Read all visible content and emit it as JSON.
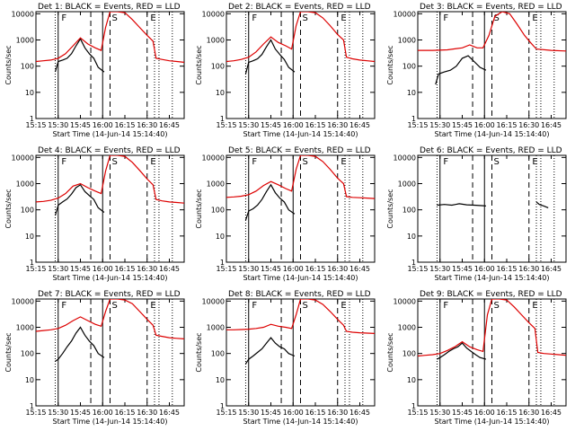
{
  "figure": {
    "xtick_labels": [
      "15:15",
      "15:30",
      "15:45",
      "16:00",
      "16:15",
      "16:30",
      "16:45"
    ],
    "ytick_labels": [
      "1",
      "10",
      "100",
      "1000",
      "10000"
    ],
    "ylabel": "Counts/sec",
    "xlabel": "Start Time (14-Jun-14 15:14:40)",
    "event_labels": [
      "F",
      "S",
      "E"
    ],
    "colors": {
      "events": "#000000",
      "lld": "#dd0000"
    }
  },
  "chart_data": [
    {
      "type": "line",
      "title": "Det 1: BLACK = Events, RED = LLD",
      "xlabel": "",
      "ylabel": "Counts/sec",
      "xlim": [
        "15:15",
        "16:55"
      ],
      "ylim": [
        1,
        12000
      ],
      "yscale": "log",
      "series": [
        {
          "name": "BLACK",
          "x": [
            "15:28",
            "15:30",
            "15:33",
            "15:36",
            "15:39",
            "15:42",
            "15:45",
            "15:48",
            "15:51",
            "15:54",
            "15:57",
            "16:01"
          ],
          "y": [
            60,
            150,
            170,
            200,
            300,
            600,
            1100,
            500,
            300,
            200,
            90,
            60
          ]
        },
        {
          "name": "RED",
          "x": [
            "15:15",
            "15:20",
            "15:25",
            "15:30",
            "15:35",
            "15:40",
            "15:45",
            "15:50",
            "15:55",
            "15:59",
            "16:02",
            "16:05",
            "16:10",
            "16:15",
            "16:20",
            "16:25",
            "16:30",
            "16:34",
            "16:36",
            "16:40",
            "16:45",
            "16:50",
            "16:55"
          ],
          "y": [
            150,
            160,
            170,
            200,
            300,
            600,
            1200,
            700,
            500,
            400,
            3000,
            12000,
            12000,
            11000,
            6000,
            3000,
            1500,
            900,
            200,
            180,
            160,
            150,
            140
          ]
        }
      ]
    },
    {
      "type": "line",
      "title": "Det 2: BLACK = Events, RED = LLD",
      "xlabel": "",
      "ylabel": "Counts/sec",
      "xlim": [
        "15:15",
        "16:55"
      ],
      "ylim": [
        1,
        12000
      ],
      "yscale": "log",
      "series": [
        {
          "name": "BLACK",
          "x": [
            "15:28",
            "15:30",
            "15:33",
            "15:36",
            "15:39",
            "15:42",
            "15:45",
            "15:48",
            "15:51",
            "15:54",
            "15:57",
            "16:01"
          ],
          "y": [
            50,
            140,
            160,
            190,
            280,
            550,
            1000,
            450,
            280,
            180,
            90,
            60
          ]
        },
        {
          "name": "RED",
          "x": [
            "15:15",
            "15:20",
            "15:25",
            "15:30",
            "15:35",
            "15:40",
            "15:45",
            "15:50",
            "15:55",
            "15:59",
            "16:02",
            "16:05",
            "16:10",
            "16:15",
            "16:20",
            "16:25",
            "16:30",
            "16:34",
            "16:36",
            "16:40",
            "16:45",
            "16:50",
            "16:55"
          ],
          "y": [
            150,
            160,
            180,
            220,
            350,
            700,
            1300,
            800,
            600,
            450,
            3500,
            12000,
            12000,
            11000,
            7000,
            3500,
            1600,
            1000,
            220,
            190,
            170,
            160,
            150
          ]
        }
      ]
    },
    {
      "type": "line",
      "title": "Det 3: BLACK = Events, RED = LLD",
      "xlabel": "",
      "ylabel": "Counts/sec",
      "xlim": [
        "15:15",
        "16:55"
      ],
      "ylim": [
        1,
        12000
      ],
      "yscale": "log",
      "series": [
        {
          "name": "BLACK",
          "x": [
            "15:27",
            "15:29",
            "15:33",
            "15:37",
            "15:41",
            "15:45",
            "15:49",
            "15:53",
            "15:57",
            "16:01"
          ],
          "y": [
            20,
            50,
            60,
            70,
            100,
            200,
            250,
            150,
            90,
            70
          ]
        },
        {
          "name": "RED",
          "x": [
            "15:15",
            "15:25",
            "15:35",
            "15:45",
            "15:50",
            "15:55",
            "15:59",
            "16:03",
            "16:07",
            "16:12",
            "16:17",
            "16:22",
            "16:27",
            "16:31",
            "16:35",
            "16:45",
            "16:55"
          ],
          "y": [
            400,
            400,
            420,
            500,
            650,
            500,
            500,
            1500,
            8000,
            12000,
            10000,
            4000,
            1500,
            800,
            450,
            400,
            380
          ]
        }
      ]
    },
    {
      "type": "line",
      "title": "Det 4: BLACK = Events, RED = LLD",
      "xlabel": "",
      "ylabel": "Counts/sec",
      "xlim": [
        "15:15",
        "16:55"
      ],
      "ylim": [
        1,
        12000
      ],
      "yscale": "log",
      "series": [
        {
          "name": "BLACK",
          "x": [
            "15:28",
            "15:30",
            "15:33",
            "15:36",
            "15:39",
            "15:42",
            "15:45",
            "15:48",
            "15:51",
            "15:54",
            "15:57",
            "16:01"
          ],
          "y": [
            60,
            150,
            200,
            260,
            400,
            700,
            900,
            500,
            350,
            250,
            120,
            80
          ]
        },
        {
          "name": "RED",
          "x": [
            "15:15",
            "15:20",
            "15:25",
            "15:30",
            "15:35",
            "15:40",
            "15:45",
            "15:50",
            "15:55",
            "15:59",
            "16:02",
            "16:05",
            "16:10",
            "16:15",
            "16:20",
            "16:25",
            "16:30",
            "16:34",
            "16:36",
            "16:40",
            "16:45",
            "16:50",
            "16:55"
          ],
          "y": [
            200,
            210,
            230,
            280,
            420,
            800,
            1000,
            700,
            520,
            420,
            3000,
            12000,
            12000,
            11000,
            6500,
            3200,
            1500,
            900,
            250,
            220,
            200,
            190,
            180
          ]
        }
      ]
    },
    {
      "type": "line",
      "title": "Det 5: BLACK = Events, RED = LLD",
      "xlabel": "",
      "ylabel": "Counts/sec",
      "xlim": [
        "15:15",
        "16:55"
      ],
      "ylim": [
        1,
        12000
      ],
      "yscale": "log",
      "series": [
        {
          "name": "BLACK",
          "x": [
            "15:28",
            "15:30",
            "15:33",
            "15:36",
            "15:39",
            "15:42",
            "15:45",
            "15:48",
            "15:51",
            "15:54",
            "15:57",
            "16:01"
          ],
          "y": [
            40,
            90,
            110,
            150,
            250,
            500,
            900,
            450,
            280,
            200,
            100,
            70
          ]
        },
        {
          "name": "RED",
          "x": [
            "15:15",
            "15:20",
            "15:25",
            "15:30",
            "15:35",
            "15:40",
            "15:45",
            "15:50",
            "15:55",
            "15:59",
            "16:02",
            "16:05",
            "16:10",
            "16:15",
            "16:20",
            "16:25",
            "16:30",
            "16:34",
            "16:36",
            "16:40",
            "16:45",
            "16:50",
            "16:55"
          ],
          "y": [
            300,
            310,
            330,
            380,
            520,
            850,
            1200,
            900,
            650,
            520,
            3500,
            12000,
            12000,
            11000,
            7000,
            3500,
            1600,
            1000,
            320,
            300,
            290,
            280,
            270
          ]
        }
      ]
    },
    {
      "type": "line",
      "title": "Det 6: BLACK = Events, RED = LLD",
      "xlabel": "",
      "ylabel": "Counts/sec",
      "xlim": [
        "15:15",
        "16:55"
      ],
      "ylim": [
        1,
        12000
      ],
      "yscale": "log",
      "series": [
        {
          "name": "BLACK",
          "x": [
            "15:28",
            "15:33",
            "15:38",
            "15:43",
            "15:48",
            "15:53",
            "15:58",
            "16:01"
          ],
          "y": [
            150,
            160,
            150,
            170,
            155,
            150,
            145,
            140
          ]
        },
        {
          "name": "BLACK",
          "x": [
            "16:35",
            "16:37",
            "16:40",
            "16:43"
          ],
          "y": [
            200,
            160,
            140,
            120
          ]
        }
      ]
    },
    {
      "type": "line",
      "title": "Det 7: BLACK = Events, RED = LLD",
      "xlabel": "",
      "ylabel": "Counts/sec",
      "xlim": [
        "15:15",
        "16:55"
      ],
      "ylim": [
        1,
        12000
      ],
      "yscale": "log",
      "series": [
        {
          "name": "BLACK",
          "x": [
            "15:28",
            "15:30",
            "15:33",
            "15:36",
            "15:39",
            "15:42",
            "15:45",
            "15:48",
            "15:51",
            "15:54",
            "15:57",
            "16:01"
          ],
          "y": [
            50,
            60,
            100,
            180,
            300,
            600,
            1000,
            500,
            300,
            200,
            100,
            70
          ]
        },
        {
          "name": "RED",
          "x": [
            "15:15",
            "15:20",
            "15:25",
            "15:30",
            "15:35",
            "15:40",
            "15:45",
            "15:50",
            "15:55",
            "15:59",
            "16:02",
            "16:05",
            "16:10",
            "16:15",
            "16:20",
            "16:25",
            "16:30",
            "16:34",
            "16:36",
            "16:40",
            "16:45",
            "16:50",
            "16:55"
          ],
          "y": [
            700,
            750,
            800,
            900,
            1200,
            1800,
            2500,
            1800,
            1300,
            1100,
            4000,
            12000,
            12000,
            11000,
            8000,
            4000,
            2000,
            1200,
            500,
            450,
            400,
            380,
            360
          ]
        }
      ]
    },
    {
      "type": "line",
      "title": "Det 8: BLACK = Events, RED = LLD",
      "xlabel": "",
      "ylabel": "Counts/sec",
      "xlim": [
        "15:15",
        "16:55"
      ],
      "ylim": [
        1,
        12000
      ],
      "yscale": "log",
      "series": [
        {
          "name": "BLACK",
          "x": [
            "15:28",
            "15:30",
            "15:33",
            "15:36",
            "15:39",
            "15:42",
            "15:45",
            "15:48",
            "15:51",
            "15:54",
            "15:57",
            "16:01"
          ],
          "y": [
            40,
            60,
            80,
            110,
            150,
            250,
            400,
            250,
            180,
            150,
            100,
            80
          ]
        },
        {
          "name": "RED",
          "x": [
            "15:15",
            "15:20",
            "15:25",
            "15:30",
            "15:35",
            "15:40",
            "15:45",
            "15:50",
            "15:55",
            "15:59",
            "16:02",
            "16:05",
            "16:10",
            "16:15",
            "16:20",
            "16:25",
            "16:30",
            "16:34",
            "16:36",
            "16:40",
            "16:45",
            "16:50",
            "16:55"
          ],
          "y": [
            800,
            800,
            820,
            850,
            900,
            1000,
            1300,
            1100,
            1000,
            900,
            3000,
            12000,
            12000,
            11000,
            7500,
            4000,
            2000,
            1200,
            700,
            650,
            620,
            600,
            580
          ]
        }
      ]
    },
    {
      "type": "line",
      "title": "Det 9: BLACK = Events, RED = LLD",
      "xlabel": "",
      "ylabel": "Counts/sec",
      "xlim": [
        "15:15",
        "16:55"
      ],
      "ylim": [
        1,
        12000
      ],
      "yscale": "log",
      "series": [
        {
          "name": "BLACK",
          "x": [
            "15:28",
            "15:30",
            "15:33",
            "15:36",
            "15:39",
            "15:42",
            "15:45",
            "15:48",
            "15:51",
            "15:54",
            "15:57",
            "16:01"
          ],
          "y": [
            60,
            70,
            90,
            120,
            150,
            180,
            250,
            160,
            120,
            90,
            70,
            60
          ]
        },
        {
          "name": "RED",
          "x": [
            "15:15",
            "15:20",
            "15:25",
            "15:30",
            "15:35",
            "15:40",
            "15:45",
            "15:50",
            "15:55",
            "15:59",
            "16:02",
            "16:05",
            "16:10",
            "16:15",
            "16:20",
            "16:25",
            "16:30",
            "16:34",
            "16:36",
            "16:40",
            "16:45",
            "16:50",
            "16:55"
          ],
          "y": [
            80,
            85,
            90,
            100,
            130,
            180,
            280,
            180,
            140,
            120,
            3000,
            12000,
            12000,
            11000,
            6000,
            3000,
            1500,
            900,
            110,
            100,
            95,
            90,
            85
          ]
        }
      ]
    }
  ]
}
